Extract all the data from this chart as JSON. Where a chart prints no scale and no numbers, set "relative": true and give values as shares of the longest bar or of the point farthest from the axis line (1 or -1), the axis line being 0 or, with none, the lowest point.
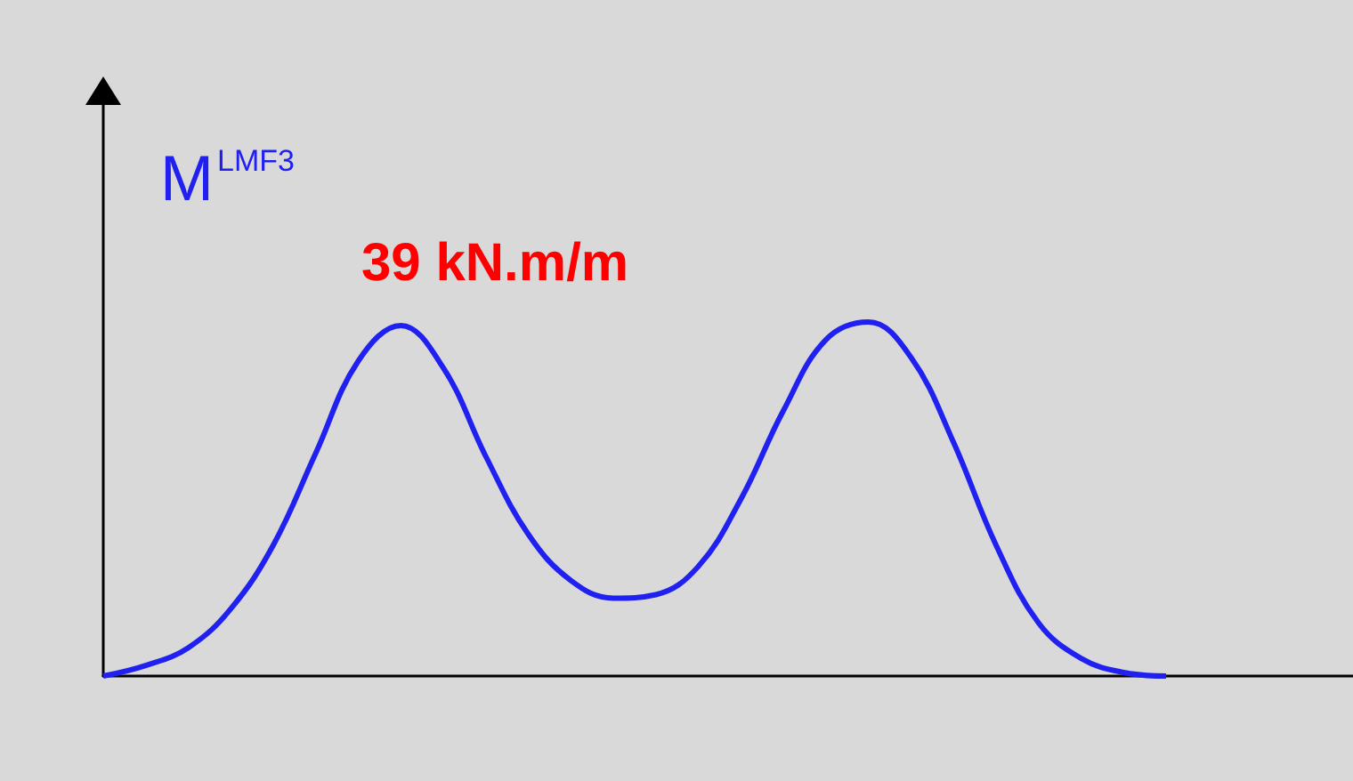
{
  "chart_data": {
    "type": "line",
    "relative": true,
    "ylabel": "M$^{LMF3}$",
    "annotations": [
      "39 kN.m/m"
    ],
    "categories": [
      null,
      null,
      null,
      null,
      null,
      null,
      null,
      null,
      null,
      null,
      null,
      null,
      null,
      null,
      null,
      null,
      null,
      null,
      null,
      null,
      null,
      null,
      null,
      null,
      null,
      null
    ],
    "series": [
      {
        "color": "#2020f0",
        "values": [
          0,
          0.03,
          0.08,
          0.19,
          0.37,
          0.63,
          0.89,
          0.99,
          0.87,
          0.62,
          0.4,
          0.27,
          0.22,
          0.23,
          0.31,
          0.5,
          0.75,
          0.95,
          1,
          0.9,
          0.66,
          0.37,
          0.15,
          0.05,
          0.01,
          0
        ]
      }
    ],
    "marker": "none",
    "line_style": "solid",
    "grid": false
  }
}
